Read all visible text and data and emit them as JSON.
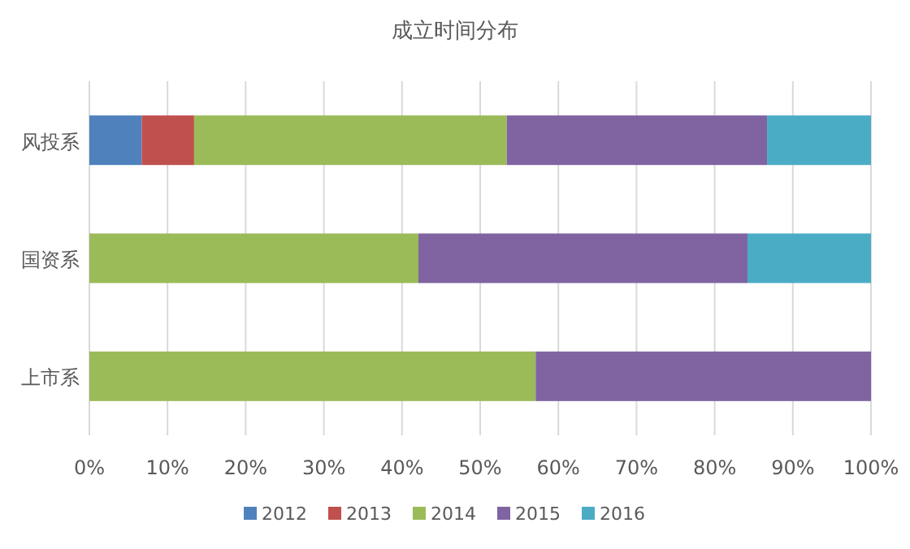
{
  "chart_data": {
    "type": "bar",
    "title": "成立时间分布",
    "orientation": "horizontal",
    "stacked": true,
    "categories": [
      "风投系",
      "国资系",
      "上市系"
    ],
    "series": [
      {
        "name": "2012",
        "color": "#4f81bd",
        "values": [
          6.7,
          0,
          0
        ]
      },
      {
        "name": "2013",
        "color": "#c0504d",
        "values": [
          6.7,
          0,
          0
        ]
      },
      {
        "name": "2014",
        "color": "#9bbb59",
        "values": [
          40,
          42.1,
          57.1
        ]
      },
      {
        "name": "2015",
        "color": "#8064a2",
        "values": [
          33.3,
          42.1,
          42.9
        ]
      },
      {
        "name": "2016",
        "color": "#4bacc6",
        "values": [
          13.3,
          15.8,
          0
        ]
      }
    ],
    "xlim": [
      0,
      100
    ],
    "xticks": [
      {
        "value": 0,
        "label": "0%"
      },
      {
        "value": 10,
        "label": "10%"
      },
      {
        "value": 20,
        "label": "20%"
      },
      {
        "value": 30,
        "label": "30%"
      },
      {
        "value": 40,
        "label": "40%"
      },
      {
        "value": 50,
        "label": "50%"
      },
      {
        "value": 60,
        "label": "60%"
      },
      {
        "value": 70,
        "label": "70%"
      },
      {
        "value": 80,
        "label": "80%"
      },
      {
        "value": 90,
        "label": "90%"
      },
      {
        "value": 100,
        "label": "100%"
      }
    ],
    "grid": "x",
    "legend": "bottom"
  }
}
